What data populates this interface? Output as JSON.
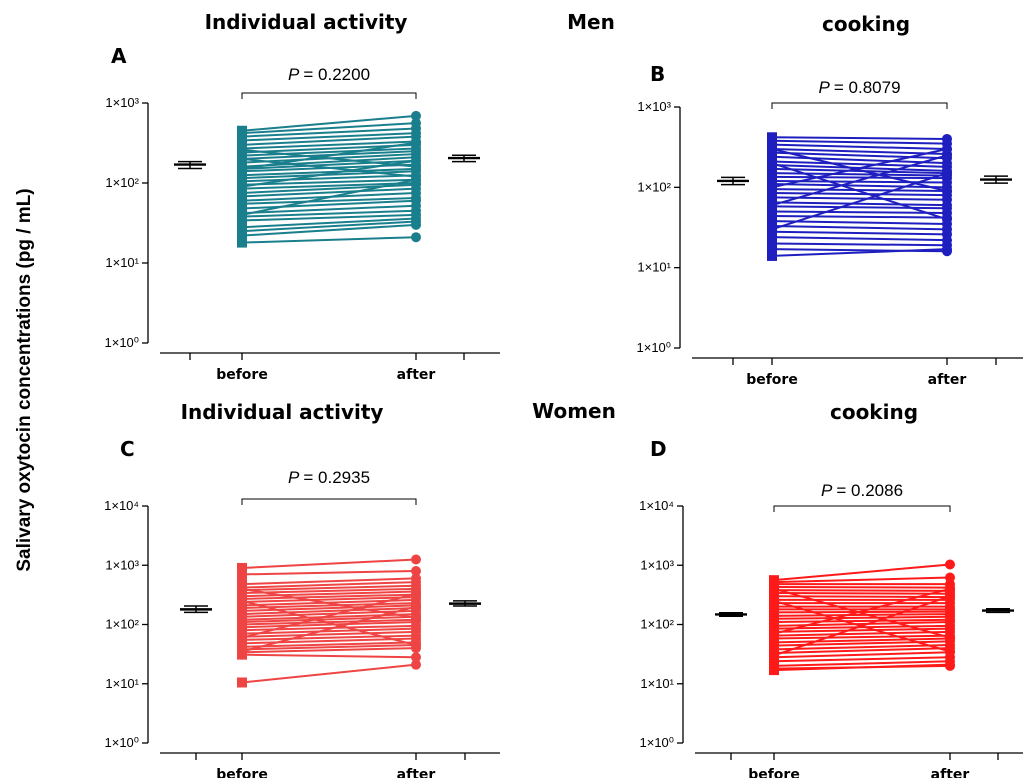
{
  "figure": {
    "ylabel": "Salivary oxytocin concentrations (pg / mL)",
    "group_labels": {
      "men": "Men",
      "women": "Women"
    },
    "column_titles": {
      "individual": "Individual activity",
      "cooking": "cooking"
    }
  },
  "chart_data": [
    {
      "type": "scatter",
      "panel": "A",
      "title": "Individual activity",
      "categories": [
        "before",
        "after"
      ],
      "yscale": "log",
      "ylim": [
        1,
        1000
      ],
      "yticks": [
        1,
        10,
        100,
        1000
      ],
      "ytick_labels": [
        "1×10⁰",
        "1×10¹",
        "1×10²",
        "1×10³"
      ],
      "p_label": "P",
      "p_value": "= 0.2200",
      "color": "#1a7f8c",
      "mean_se": {
        "before": {
          "mean": 170,
          "low": 152,
          "high": 185
        },
        "after": {
          "mean": 205,
          "low": 185,
          "high": 222
        }
      },
      "series": [
        {
          "values": [
            450,
            690
          ]
        },
        {
          "values": [
            420,
            560
          ]
        },
        {
          "values": [
            380,
            480
          ]
        },
        {
          "values": [
            340,
            420
          ]
        },
        {
          "values": [
            300,
            380
          ]
        },
        {
          "values": [
            270,
            330
          ]
        },
        {
          "values": [
            240,
            300
          ]
        },
        {
          "values": [
            220,
            270
          ]
        },
        {
          "values": [
            200,
            250
          ]
        },
        {
          "values": [
            180,
            230
          ]
        },
        {
          "values": [
            160,
            210
          ]
        },
        {
          "values": [
            150,
            190
          ]
        },
        {
          "values": [
            140,
            170
          ]
        },
        {
          "values": [
            125,
            150
          ]
        },
        {
          "values": [
            115,
            140
          ]
        },
        {
          "values": [
            105,
            125
          ]
        },
        {
          "values": [
            95,
            110
          ]
        },
        {
          "values": [
            85,
            100
          ]
        },
        {
          "values": [
            75,
            95
          ]
        },
        {
          "values": [
            68,
            85
          ]
        },
        {
          "values": [
            60,
            75
          ]
        },
        {
          "values": [
            55,
            65
          ]
        },
        {
          "values": [
            48,
            60
          ]
        },
        {
          "values": [
            42,
            52
          ]
        },
        {
          "values": [
            38,
            45
          ]
        },
        {
          "values": [
            34,
            40
          ]
        },
        {
          "values": [
            28,
            36
          ]
        },
        {
          "values": [
            25,
            33
          ]
        },
        {
          "values": [
            22,
            30
          ]
        },
        {
          "values": [
            18,
            21
          ]
        },
        {
          "values": [
            260,
            160
          ]
        },
        {
          "values": [
            200,
            120
          ]
        },
        {
          "values": [
            90,
            190
          ]
        },
        {
          "values": [
            40,
            110
          ]
        },
        {
          "values": [
            150,
            320
          ]
        }
      ]
    },
    {
      "type": "scatter",
      "panel": "B",
      "title": "cooking",
      "categories": [
        "before",
        "after"
      ],
      "yscale": "log",
      "ylim": [
        1,
        1000
      ],
      "yticks": [
        1,
        10,
        100,
        1000
      ],
      "ytick_labels": [
        "1×10⁰",
        "1×10¹",
        "1×10²",
        "1×10³"
      ],
      "p_label": "P",
      "p_value": "= 0.8079",
      "color": "#1f1fc0",
      "mean_se": {
        "before": {
          "mean": 120,
          "low": 108,
          "high": 133
        },
        "after": {
          "mean": 125,
          "low": 113,
          "high": 138
        }
      },
      "series": [
        {
          "values": [
            420,
            400
          ]
        },
        {
          "values": [
            380,
            350
          ]
        },
        {
          "values": [
            340,
            300
          ]
        },
        {
          "values": [
            300,
            260
          ]
        },
        {
          "values": [
            270,
            230
          ]
        },
        {
          "values": [
            240,
            200
          ]
        },
        {
          "values": [
            210,
            180
          ]
        },
        {
          "values": [
            190,
            160
          ]
        },
        {
          "values": [
            170,
            150
          ]
        },
        {
          "values": [
            150,
            140
          ]
        },
        {
          "values": [
            135,
            130
          ]
        },
        {
          "values": [
            120,
            115
          ]
        },
        {
          "values": [
            110,
            100
          ]
        },
        {
          "values": [
            95,
            90
          ]
        },
        {
          "values": [
            85,
            80
          ]
        },
        {
          "values": [
            75,
            70
          ]
        },
        {
          "values": [
            65,
            60
          ]
        },
        {
          "values": [
            58,
            55
          ]
        },
        {
          "values": [
            50,
            48
          ]
        },
        {
          "values": [
            44,
            42
          ]
        },
        {
          "values": [
            38,
            35
          ]
        },
        {
          "values": [
            33,
            30
          ]
        },
        {
          "values": [
            28,
            26
          ]
        },
        {
          "values": [
            24,
            22
          ]
        },
        {
          "values": [
            20,
            19
          ]
        },
        {
          "values": [
            17,
            16
          ]
        },
        {
          "values": [
            14,
            17
          ]
        },
        {
          "values": [
            300,
            90
          ]
        },
        {
          "values": [
            60,
            250
          ]
        },
        {
          "values": [
            200,
            40
          ]
        },
        {
          "values": [
            30,
            150
          ]
        },
        {
          "values": [
            100,
            300
          ]
        }
      ]
    },
    {
      "type": "scatter",
      "panel": "C",
      "title": "Individual activity",
      "categories": [
        "before",
        "after"
      ],
      "yscale": "log",
      "ylim": [
        1,
        10000
      ],
      "yticks": [
        1,
        10,
        100,
        1000,
        10000
      ],
      "ytick_labels": [
        "1×10⁰",
        "1×10¹",
        "1×10²",
        "1×10³",
        "1×10⁴"
      ],
      "p_label": "P",
      "p_value": "= 0.2935",
      "color": "#ef4444",
      "mean_se": {
        "before": {
          "mean": 180,
          "low": 160,
          "high": 205
        },
        "after": {
          "mean": 225,
          "low": 205,
          "high": 250
        }
      },
      "series": [
        {
          "values": [
            900,
            1250
          ]
        },
        {
          "values": [
            700,
            800
          ]
        },
        {
          "values": [
            480,
            600
          ]
        },
        {
          "values": [
            420,
            520
          ]
        },
        {
          "values": [
            380,
            450
          ]
        },
        {
          "values": [
            340,
            400
          ]
        },
        {
          "values": [
            300,
            360
          ]
        },
        {
          "values": [
            270,
            320
          ]
        },
        {
          "values": [
            240,
            290
          ]
        },
        {
          "values": [
            210,
            260
          ]
        },
        {
          "values": [
            190,
            230
          ]
        },
        {
          "values": [
            170,
            210
          ]
        },
        {
          "values": [
            150,
            190
          ]
        },
        {
          "values": [
            135,
            170
          ]
        },
        {
          "values": [
            120,
            150
          ]
        },
        {
          "values": [
            110,
            135
          ]
        },
        {
          "values": [
            100,
            120
          ]
        },
        {
          "values": [
            90,
            110
          ]
        },
        {
          "values": [
            80,
            95
          ]
        },
        {
          "values": [
            70,
            85
          ]
        },
        {
          "values": [
            62,
            75
          ]
        },
        {
          "values": [
            55,
            65
          ]
        },
        {
          "values": [
            48,
            58
          ]
        },
        {
          "values": [
            42,
            50
          ]
        },
        {
          "values": [
            38,
            45
          ]
        },
        {
          "values": [
            34,
            40
          ]
        },
        {
          "values": [
            31,
            28
          ]
        },
        {
          "values": [
            10.5,
            21
          ]
        },
        {
          "values": [
            400,
            130
          ]
        },
        {
          "values": [
            60,
            330
          ]
        },
        {
          "values": [
            250,
            45
          ]
        },
        {
          "values": [
            35,
            200
          ]
        }
      ]
    },
    {
      "type": "scatter",
      "panel": "D",
      "title": "cooking",
      "categories": [
        "before",
        "after"
      ],
      "yscale": "log",
      "ylim": [
        1,
        10000
      ],
      "yticks": [
        1,
        10,
        100,
        1000,
        10000
      ],
      "ytick_labels": [
        "1×10⁰",
        "1×10¹",
        "1×10²",
        "1×10³",
        "1×10⁴"
      ],
      "p_label": "P",
      "p_value": "= 0.2086",
      "color": "#ff1a1a",
      "mean_se": {
        "before": {
          "mean": 148,
          "low": 138,
          "high": 158
        },
        "after": {
          "mean": 172,
          "low": 160,
          "high": 184
        }
      },
      "series": [
        {
          "values": [
            560,
            1030
          ]
        },
        {
          "values": [
            520,
            620
          ]
        },
        {
          "values": [
            480,
            480
          ]
        },
        {
          "values": [
            430,
            420
          ]
        },
        {
          "values": [
            380,
            370
          ]
        },
        {
          "values": [
            340,
            330
          ]
        },
        {
          "values": [
            300,
            290
          ]
        },
        {
          "values": [
            260,
            260
          ]
        },
        {
          "values": [
            230,
            230
          ]
        },
        {
          "values": [
            200,
            200
          ]
        },
        {
          "values": [
            180,
            180
          ]
        },
        {
          "values": [
            160,
            165
          ]
        },
        {
          "values": [
            140,
            150
          ]
        },
        {
          "values": [
            125,
            135
          ]
        },
        {
          "values": [
            110,
            120
          ]
        },
        {
          "values": [
            95,
            110
          ]
        },
        {
          "values": [
            85,
            95
          ]
        },
        {
          "values": [
            75,
            85
          ]
        },
        {
          "values": [
            65,
            75
          ]
        },
        {
          "values": [
            58,
            65
          ]
        },
        {
          "values": [
            50,
            58
          ]
        },
        {
          "values": [
            44,
            52
          ]
        },
        {
          "values": [
            38,
            45
          ]
        },
        {
          "values": [
            33,
            40
          ]
        },
        {
          "values": [
            28,
            34
          ]
        },
        {
          "values": [
            24,
            28
          ]
        },
        {
          "values": [
            20,
            24
          ]
        },
        {
          "values": [
            17,
            21
          ]
        },
        {
          "values": [
            18,
            20
          ]
        },
        {
          "values": [
            400,
            60
          ]
        },
        {
          "values": [
            30,
            300
          ]
        },
        {
          "values": [
            250,
            35
          ]
        },
        {
          "values": [
            70,
            400
          ]
        }
      ]
    }
  ]
}
